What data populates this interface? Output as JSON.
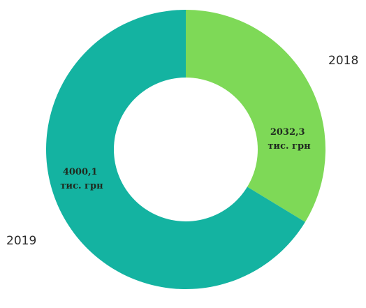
{
  "chart_data": {
    "type": "pie",
    "donut": true,
    "title": "",
    "categories": [
      "2018",
      "2019"
    ],
    "values": [
      2032.3,
      4000.1
    ],
    "value_labels": [
      [
        "2032,3",
        "тис. грн"
      ],
      [
        "4000,1",
        "тис. грн"
      ]
    ],
    "colors": [
      "#7ed957",
      "#14b3a1"
    ],
    "legend": "none"
  }
}
